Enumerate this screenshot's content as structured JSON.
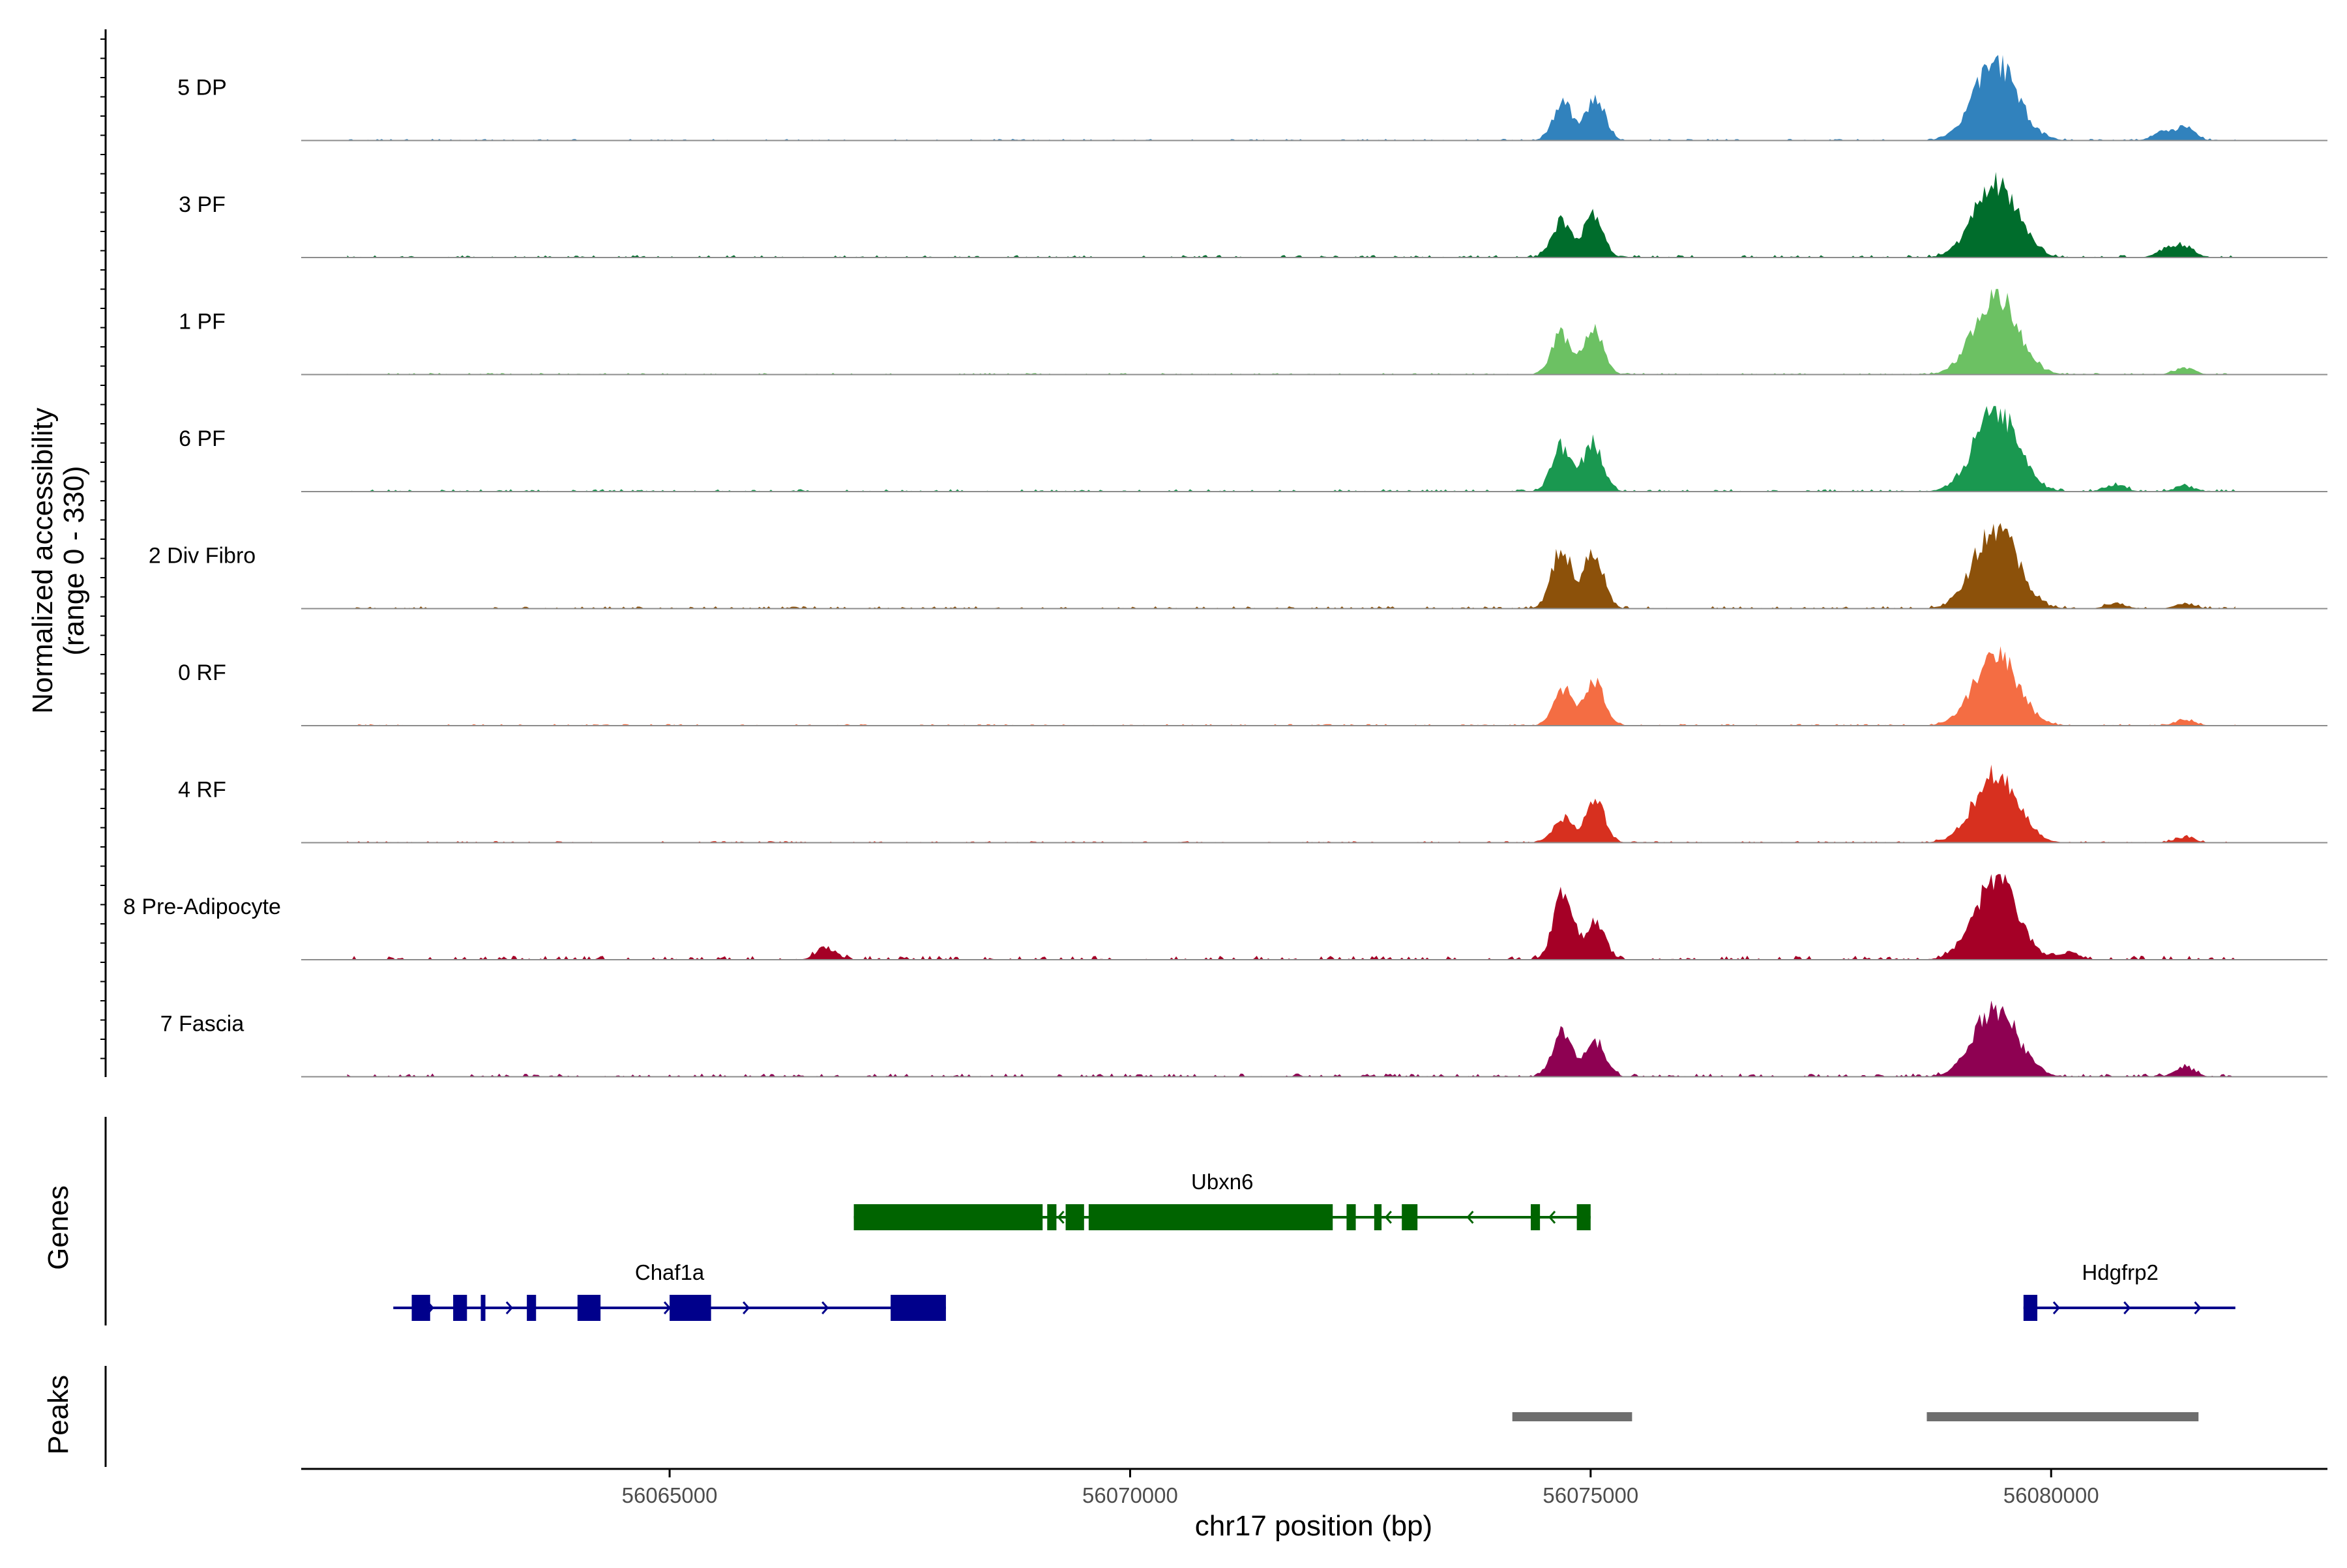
{
  "chart_data": {
    "type": "area",
    "xlabel": "chr17 position (bp)",
    "ylabel": "Normalized accessibility",
    "ylabel_range": "(range 0 - 330)",
    "xlim": [
      56061000,
      56083000
    ],
    "ylim": [
      0,
      330
    ],
    "xticks": [
      {
        "value": 56065000,
        "label": "56065000"
      },
      {
        "value": 56070000,
        "label": "56070000"
      },
      {
        "value": 56075000,
        "label": "56075000"
      },
      {
        "value": 56080000,
        "label": "56080000"
      }
    ],
    "tracks": [
      {
        "name": "5 DP",
        "color": "#3182bd",
        "peaks": [
          [
            56074700,
            0.45
          ],
          [
            56075050,
            0.5
          ],
          [
            56079400,
            0.95
          ],
          [
            56081200,
            0.1
          ],
          [
            56081450,
            0.16
          ]
        ],
        "noise": 0.02
      },
      {
        "name": "3 PF",
        "color": "#006d2c",
        "peaks": [
          [
            56074680,
            0.45
          ],
          [
            56075030,
            0.52
          ],
          [
            56079400,
            0.92
          ],
          [
            56081250,
            0.1
          ],
          [
            56081460,
            0.13
          ]
        ],
        "noise": 0.03
      },
      {
        "name": "1 PF",
        "color": "#6cc163",
        "peaks": [
          [
            56074680,
            0.5
          ],
          [
            56075030,
            0.55
          ],
          [
            56079400,
            0.98
          ],
          [
            56081450,
            0.08
          ]
        ],
        "noise": 0.02
      },
      {
        "name": "6 PF",
        "color": "#1a9850",
        "peaks": [
          [
            56074680,
            0.55
          ],
          [
            56075030,
            0.6
          ],
          [
            56079400,
            1.0
          ],
          [
            56080700,
            0.09
          ],
          [
            56081450,
            0.07
          ]
        ],
        "noise": 0.03
      },
      {
        "name": "2 Div Fibro",
        "color": "#8c510a",
        "peaks": [
          [
            56074680,
            0.75
          ],
          [
            56075030,
            0.72
          ],
          [
            56079400,
            1.0
          ],
          [
            56080700,
            0.07
          ],
          [
            56081450,
            0.06
          ]
        ],
        "noise": 0.03
      },
      {
        "name": "0 RF",
        "color": "#f46d43",
        "peaks": [
          [
            56074700,
            0.45
          ],
          [
            56075050,
            0.55
          ],
          [
            56079400,
            0.9
          ],
          [
            56081450,
            0.07
          ]
        ],
        "noise": 0.02
      },
      {
        "name": "4 RF",
        "color": "#d7301f",
        "peaks": [
          [
            56074700,
            0.3
          ],
          [
            56075050,
            0.5
          ],
          [
            56079400,
            0.85
          ],
          [
            56081450,
            0.07
          ]
        ],
        "noise": 0.02
      },
      {
        "name": "8 Pre-Adipocyte",
        "color": "#a50026",
        "peaks": [
          [
            56066700,
            0.15
          ],
          [
            56074700,
            0.8
          ],
          [
            56075050,
            0.45
          ],
          [
            56079400,
            1.0
          ],
          [
            56080200,
            0.08
          ]
        ],
        "noise": 0.05
      },
      {
        "name": "7 Fascia",
        "color": "#8e0152",
        "peaks": [
          [
            56074700,
            0.55
          ],
          [
            56075050,
            0.45
          ],
          [
            56079400,
            0.85
          ],
          [
            56081450,
            0.12
          ]
        ],
        "noise": 0.04
      }
    ],
    "genes_label": "Genes",
    "peaks_label": "Peaks",
    "genes": [
      {
        "name": "Ubxn6",
        "color": "#006400",
        "start": 56067000,
        "end": 56075000,
        "strand": "-",
        "row": 0,
        "exons": [
          [
            56067000,
            56069050
          ],
          [
            56069100,
            56069200
          ],
          [
            56069300,
            56069500
          ],
          [
            56069550,
            56072200
          ],
          [
            56072350,
            56072450
          ],
          [
            56072650,
            56072730
          ],
          [
            56072950,
            56073120
          ],
          [
            56074350,
            56074450
          ],
          [
            56074850,
            56075000
          ]
        ]
      },
      {
        "name": "Chaf1a",
        "color": "#00008b",
        "start": 56062000,
        "end": 56068000,
        "strand": "+",
        "row": 1,
        "exons": [
          [
            56062200,
            56062400
          ],
          [
            56062650,
            56062800
          ],
          [
            56062950,
            56063000
          ],
          [
            56063450,
            56063550
          ],
          [
            56064000,
            56064250
          ],
          [
            56065000,
            56065450
          ],
          [
            56067400,
            56068000
          ]
        ]
      },
      {
        "name": "Hdgfrp2",
        "color": "#00008b",
        "start": 56079700,
        "end": 56082000,
        "strand": "+",
        "row": 1,
        "exons": [
          [
            56079700,
            56079850
          ]
        ]
      }
    ],
    "peak_regions": [
      [
        56074150,
        56075450
      ],
      [
        56078650,
        56081600
      ]
    ]
  }
}
